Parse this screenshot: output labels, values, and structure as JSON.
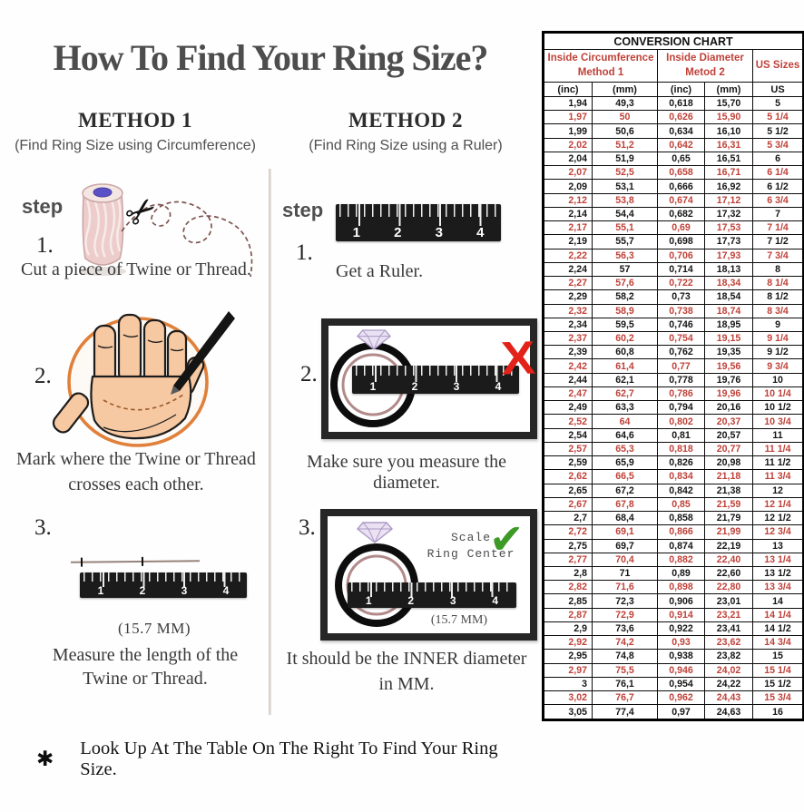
{
  "title": "How To Find Your Ring Size?",
  "method1": {
    "heading": "METHOD 1",
    "subheading": "(Find Ring Size using Circumference)",
    "step_label": "step",
    "step1": {
      "num": "1.",
      "caption": "Cut a piece of  Twine or Thread."
    },
    "step2": {
      "num": "2.",
      "caption1": "Mark where the Twine or Thread",
      "caption2": "crosses each other."
    },
    "step3": {
      "num": "3.",
      "measurement": "(15.7 MM)",
      "caption1": "Measure the length of the",
      "caption2": "Twine or Thread."
    }
  },
  "method2": {
    "heading": "METHOD 2",
    "subheading": "(Find Ring Size using a Ruler)",
    "step_label": "step",
    "step1": {
      "num": "1.",
      "caption": "Get a Ruler."
    },
    "step2": {
      "num": "2.",
      "caption": "Make sure you measure the diameter.",
      "x_mark": "X"
    },
    "step3": {
      "num": "3.",
      "scale_label1": "Scale",
      "scale_label2": "Ring Center",
      "check_mark": "✔",
      "measurement": "(15.7 MM)",
      "caption1": "It should be the INNER diameter",
      "caption2": "in MM."
    }
  },
  "ruler_numbers": [
    "1",
    "2",
    "3",
    "4"
  ],
  "footer": {
    "mark": "✱",
    "text": "Look Up At The Table On The Right To Find Your Ring Size."
  },
  "colors": {
    "accent_red": "#bf4138",
    "x_red": "#e32219",
    "check_green": "#3d9a27",
    "orange_circle": "#e0803a"
  },
  "table": {
    "title": "CONVERSION CHART",
    "group_headers": [
      {
        "line1": "Inside Circumference",
        "line2": "Method 1"
      },
      {
        "line1": "Inside Diameter",
        "line2": "Metod 2"
      },
      {
        "line1": "US Sizes",
        "line2": ""
      }
    ],
    "columns": [
      "(inc)",
      "(mm)",
      "(inc)",
      "(mm)",
      "US"
    ],
    "rows": [
      [
        "1,94",
        "49,3",
        "0,618",
        "15,70",
        "5"
      ],
      [
        "1,97",
        "50",
        "0,626",
        "15,90",
        "5 1/4"
      ],
      [
        "1,99",
        "50,6",
        "0,634",
        "16,10",
        "5 1/2"
      ],
      [
        "2,02",
        "51,2",
        "0,642",
        "16,31",
        "5 3/4"
      ],
      [
        "2,04",
        "51,9",
        "0,65",
        "16,51",
        "6"
      ],
      [
        "2,07",
        "52,5",
        "0,658",
        "16,71",
        "6 1/4"
      ],
      [
        "2,09",
        "53,1",
        "0,666",
        "16,92",
        "6 1/2"
      ],
      [
        "2,12",
        "53,8",
        "0,674",
        "17,12",
        "6 3/4"
      ],
      [
        "2,14",
        "54,4",
        "0,682",
        "17,32",
        "7"
      ],
      [
        "2,17",
        "55,1",
        "0,69",
        "17,53",
        "7 1/4"
      ],
      [
        "2,19",
        "55,7",
        "0,698",
        "17,73",
        "7 1/2"
      ],
      [
        "2,22",
        "56,3",
        "0,706",
        "17,93",
        "7 3/4"
      ],
      [
        "2,24",
        "57",
        "0,714",
        "18,13",
        "8"
      ],
      [
        "2,27",
        "57,6",
        "0,722",
        "18,34",
        "8 1/4"
      ],
      [
        "2,29",
        "58,2",
        "0,73",
        "18,54",
        "8 1/2"
      ],
      [
        "2,32",
        "58,9",
        "0,738",
        "18,74",
        "8 3/4"
      ],
      [
        "2,34",
        "59,5",
        "0,746",
        "18,95",
        "9"
      ],
      [
        "2,37",
        "60,2",
        "0,754",
        "19,15",
        "9 1/4"
      ],
      [
        "2,39",
        "60,8",
        "0,762",
        "19,35",
        "9 1/2"
      ],
      [
        "2,42",
        "61,4",
        "0,77",
        "19,56",
        "9 3/4"
      ],
      [
        "2,44",
        "62,1",
        "0,778",
        "19,76",
        "10"
      ],
      [
        "2,47",
        "62,7",
        "0,786",
        "19,96",
        "10 1/4"
      ],
      [
        "2,49",
        "63,3",
        "0,794",
        "20,16",
        "10 1/2"
      ],
      [
        "2,52",
        "64",
        "0,802",
        "20,37",
        "10 3/4"
      ],
      [
        "2,54",
        "64,6",
        "0,81",
        "20,57",
        "11"
      ],
      [
        "2,57",
        "65,3",
        "0,818",
        "20,77",
        "11 1/4"
      ],
      [
        "2,59",
        "65,9",
        "0,826",
        "20,98",
        "11 1/2"
      ],
      [
        "2,62",
        "66,5",
        "0,834",
        "21,18",
        "11 3/4"
      ],
      [
        "2,65",
        "67,2",
        "0,842",
        "21,38",
        "12"
      ],
      [
        "2,67",
        "67,8",
        "0,85",
        "21,59",
        "12 1/4"
      ],
      [
        "2,7",
        "68,4",
        "0,858",
        "21,79",
        "12 1/2"
      ],
      [
        "2,72",
        "69,1",
        "0,866",
        "21,99",
        "12 3/4"
      ],
      [
        "2,75",
        "69,7",
        "0,874",
        "22,19",
        "13"
      ],
      [
        "2,77",
        "70,4",
        "0,882",
        "22,40",
        "13 1/4"
      ],
      [
        "2,8",
        "71",
        "0,89",
        "22,60",
        "13 1/2"
      ],
      [
        "2,82",
        "71,6",
        "0,898",
        "22,80",
        "13 3/4"
      ],
      [
        "2,85",
        "72,3",
        "0,906",
        "23,01",
        "14"
      ],
      [
        "2,87",
        "72,9",
        "0,914",
        "23,21",
        "14 1/4"
      ],
      [
        "2,9",
        "73,6",
        "0,922",
        "23,41",
        "14 1/2"
      ],
      [
        "2,92",
        "74,2",
        "0,93",
        "23,62",
        "14 3/4"
      ],
      [
        "2,95",
        "74,8",
        "0,938",
        "23,82",
        "15"
      ],
      [
        "2,97",
        "75,5",
        "0,946",
        "24,02",
        "15 1/4"
      ],
      [
        "3",
        "76,1",
        "0,954",
        "24,22",
        "15 1/2"
      ],
      [
        "3,02",
        "76,7",
        "0,962",
        "24,43",
        "15 3/4"
      ],
      [
        "3,05",
        "77,4",
        "0,97",
        "24,63",
        "16"
      ]
    ]
  }
}
